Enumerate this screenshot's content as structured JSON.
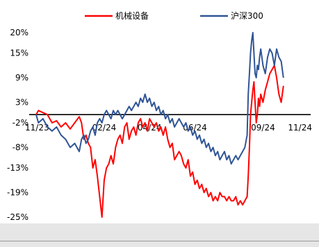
{
  "chart_data": {
    "type": "line",
    "title": "",
    "xlabel": "",
    "ylabel": "",
    "ylim": [
      -25,
      20
    ],
    "y_ticks": [
      "20%",
      "15%",
      "9%",
      "3%",
      "-2%",
      "-8%",
      "-13%",
      "-19%",
      "-25%"
    ],
    "y_tick_values": [
      20,
      15,
      9,
      3,
      -2,
      -8,
      -13,
      -19,
      -25
    ],
    "x_ticks": [
      "11/23",
      "02/24",
      "04/24",
      "06/24",
      "09/24",
      "11/24"
    ],
    "x_tick_values": [
      0,
      3,
      5,
      7,
      10,
      12
    ],
    "x_unit": "months since start of window",
    "legend_position": "top",
    "grid": false,
    "series": [
      {
        "name": "机械设备",
        "color": "#ff0000",
        "points": [
          [
            0,
            0
          ],
          [
            0.1,
            1
          ],
          [
            0.3,
            0.5
          ],
          [
            0.5,
            0
          ],
          [
            0.7,
            -2
          ],
          [
            0.9,
            -1.5
          ],
          [
            1.1,
            -3
          ],
          [
            1.3,
            -2
          ],
          [
            1.5,
            -3.5
          ],
          [
            1.7,
            -2
          ],
          [
            1.9,
            -0.5
          ],
          [
            2.0,
            -2
          ],
          [
            2.1,
            -6
          ],
          [
            2.2,
            -5
          ],
          [
            2.3,
            -7
          ],
          [
            2.4,
            -8
          ],
          [
            2.5,
            -13
          ],
          [
            2.6,
            -11
          ],
          [
            2.7,
            -15
          ],
          [
            2.8,
            -20
          ],
          [
            2.9,
            -25
          ],
          [
            3.0,
            -16
          ],
          [
            3.1,
            -13
          ],
          [
            3.2,
            -12
          ],
          [
            3.3,
            -10
          ],
          [
            3.4,
            -12
          ],
          [
            3.5,
            -8
          ],
          [
            3.6,
            -6
          ],
          [
            3.7,
            -5
          ],
          [
            3.8,
            -7
          ],
          [
            3.9,
            -3
          ],
          [
            4.0,
            -2
          ],
          [
            4.1,
            -6
          ],
          [
            4.2,
            -4
          ],
          [
            4.3,
            -3
          ],
          [
            4.4,
            -5
          ],
          [
            4.5,
            -2
          ],
          [
            4.6,
            -1
          ],
          [
            4.7,
            -3
          ],
          [
            4.8,
            -2
          ],
          [
            4.9,
            -4
          ],
          [
            5.0,
            -1
          ],
          [
            5.1,
            -2
          ],
          [
            5.2,
            -3
          ],
          [
            5.3,
            -2
          ],
          [
            5.4,
            -4
          ],
          [
            5.5,
            -3
          ],
          [
            5.6,
            -5
          ],
          [
            5.7,
            -3
          ],
          [
            5.8,
            -6
          ],
          [
            5.9,
            -8
          ],
          [
            6.0,
            -7
          ],
          [
            6.1,
            -11
          ],
          [
            6.2,
            -10
          ],
          [
            6.3,
            -9
          ],
          [
            6.4,
            -10
          ],
          [
            6.5,
            -12
          ],
          [
            6.6,
            -13
          ],
          [
            6.7,
            -11
          ],
          [
            6.8,
            -15
          ],
          [
            6.9,
            -14
          ],
          [
            7.0,
            -17
          ],
          [
            7.1,
            -16
          ],
          [
            7.2,
            -18
          ],
          [
            7.3,
            -17
          ],
          [
            7.4,
            -19
          ],
          [
            7.5,
            -18
          ],
          [
            7.6,
            -20
          ],
          [
            7.7,
            -19
          ],
          [
            7.8,
            -21
          ],
          [
            7.9,
            -20
          ],
          [
            8.0,
            -21
          ],
          [
            8.1,
            -19
          ],
          [
            8.2,
            -20
          ],
          [
            8.3,
            -20
          ],
          [
            8.4,
            -21
          ],
          [
            8.5,
            -20
          ],
          [
            8.6,
            -21
          ],
          [
            8.7,
            -21
          ],
          [
            8.8,
            -20
          ],
          [
            8.9,
            -22
          ],
          [
            9.0,
            -21
          ],
          [
            9.1,
            -22
          ],
          [
            9.2,
            -21
          ],
          [
            9.3,
            -20
          ],
          [
            9.35,
            -15
          ],
          [
            9.4,
            -8
          ],
          [
            9.45,
            0
          ],
          [
            9.5,
            3
          ],
          [
            9.55,
            6
          ],
          [
            9.6,
            8
          ],
          [
            9.65,
            3
          ],
          [
            9.7,
            -2
          ],
          [
            9.75,
            0
          ],
          [
            9.8,
            4
          ],
          [
            9.85,
            2
          ],
          [
            9.9,
            5
          ],
          [
            10.0,
            3
          ],
          [
            10.1,
            6
          ],
          [
            10.2,
            8
          ],
          [
            10.3,
            10
          ],
          [
            10.4,
            11
          ],
          [
            10.5,
            12
          ],
          [
            10.6,
            9
          ],
          [
            10.7,
            5
          ],
          [
            10.8,
            3
          ],
          [
            10.9,
            7
          ]
        ]
      },
      {
        "name": "沪深300",
        "color": "#2f5496",
        "points": [
          [
            0,
            0
          ],
          [
            0.1,
            -2
          ],
          [
            0.3,
            -1
          ],
          [
            0.5,
            -3
          ],
          [
            0.7,
            -4
          ],
          [
            0.9,
            -3
          ],
          [
            1.1,
            -5
          ],
          [
            1.3,
            -6
          ],
          [
            1.5,
            -8
          ],
          [
            1.7,
            -7
          ],
          [
            1.9,
            -9
          ],
          [
            2.0,
            -6
          ],
          [
            2.1,
            -5
          ],
          [
            2.2,
            -7
          ],
          [
            2.3,
            -6
          ],
          [
            2.4,
            -4
          ],
          [
            2.5,
            -3
          ],
          [
            2.6,
            -5
          ],
          [
            2.7,
            -2
          ],
          [
            2.8,
            -1
          ],
          [
            2.9,
            -2
          ],
          [
            3.0,
            0
          ],
          [
            3.1,
            1
          ],
          [
            3.2,
            0
          ],
          [
            3.3,
            -1
          ],
          [
            3.4,
            1
          ],
          [
            3.5,
            0
          ],
          [
            3.6,
            1
          ],
          [
            3.7,
            0
          ],
          [
            3.8,
            -1
          ],
          [
            3.9,
            0
          ],
          [
            4.0,
            1
          ],
          [
            4.1,
            2
          ],
          [
            4.2,
            1
          ],
          [
            4.3,
            2
          ],
          [
            4.4,
            3
          ],
          [
            4.5,
            2
          ],
          [
            4.6,
            4
          ],
          [
            4.7,
            3
          ],
          [
            4.8,
            5
          ],
          [
            4.9,
            3
          ],
          [
            5.0,
            4
          ],
          [
            5.1,
            2
          ],
          [
            5.2,
            3
          ],
          [
            5.3,
            1
          ],
          [
            5.4,
            2
          ],
          [
            5.5,
            0
          ],
          [
            5.6,
            1
          ],
          [
            5.7,
            -1
          ],
          [
            5.8,
            0
          ],
          [
            5.9,
            -2
          ],
          [
            6.0,
            -1
          ],
          [
            6.1,
            -3
          ],
          [
            6.2,
            -2
          ],
          [
            6.3,
            -1
          ],
          [
            6.4,
            -2
          ],
          [
            6.5,
            -3
          ],
          [
            6.6,
            -2
          ],
          [
            6.7,
            -4
          ],
          [
            6.8,
            -3
          ],
          [
            6.9,
            -5
          ],
          [
            7.0,
            -4
          ],
          [
            7.1,
            -6
          ],
          [
            7.2,
            -5
          ],
          [
            7.3,
            -7
          ],
          [
            7.4,
            -6
          ],
          [
            7.5,
            -8
          ],
          [
            7.6,
            -7
          ],
          [
            7.7,
            -9
          ],
          [
            7.8,
            -8
          ],
          [
            7.9,
            -10
          ],
          [
            8.0,
            -9
          ],
          [
            8.1,
            -11
          ],
          [
            8.2,
            -10
          ],
          [
            8.3,
            -9
          ],
          [
            8.4,
            -11
          ],
          [
            8.5,
            -10
          ],
          [
            8.6,
            -12
          ],
          [
            8.7,
            -11
          ],
          [
            8.8,
            -10
          ],
          [
            8.9,
            -11
          ],
          [
            9.0,
            -10
          ],
          [
            9.1,
            -9
          ],
          [
            9.2,
            -8
          ],
          [
            9.3,
            -5
          ],
          [
            9.35,
            5
          ],
          [
            9.4,
            10
          ],
          [
            9.45,
            15
          ],
          [
            9.5,
            18
          ],
          [
            9.55,
            20
          ],
          [
            9.6,
            15
          ],
          [
            9.65,
            10
          ],
          [
            9.7,
            9
          ],
          [
            9.75,
            12
          ],
          [
            9.8,
            11
          ],
          [
            9.85,
            14
          ],
          [
            9.9,
            16
          ],
          [
            10.0,
            12
          ],
          [
            10.1,
            10
          ],
          [
            10.2,
            14
          ],
          [
            10.3,
            16
          ],
          [
            10.4,
            15
          ],
          [
            10.5,
            12
          ],
          [
            10.6,
            16
          ],
          [
            10.7,
            14
          ],
          [
            10.8,
            13
          ],
          [
            10.9,
            9
          ]
        ]
      }
    ]
  }
}
